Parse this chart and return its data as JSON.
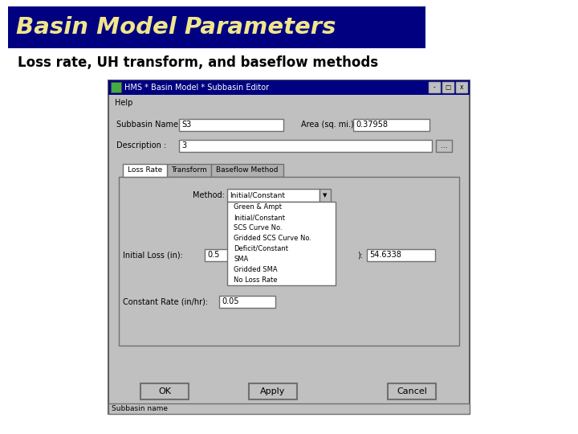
{
  "title": "Basin Model Parameters",
  "title_bg_color": "#000080",
  "title_text_color": "#F0E68C",
  "subtitle": "Loss rate, UH transform, and baseflow methods",
  "subtitle_color": "#000000",
  "bg_color": "#ffffff",
  "dialog": {
    "title_bar": "HMS * Basin Model * Subbasin Editor",
    "title_bar_bg": "#000080",
    "title_bar_fg": "#ffffff",
    "bg_color": "#C0C0C0",
    "subbasin_name_label": "Subbasin Name :",
    "subbasin_name_value": "S3",
    "area_label": "Area (sq. mi.)",
    "area_value": "0.37958",
    "description_label": "Description :",
    "description_value": "3",
    "tabs": [
      "Loss Rate",
      "Transform",
      "Baseflow Method"
    ],
    "active_tab": 0,
    "method_label": "Method:",
    "method_value": "Initial/Constant",
    "dropdown_items": [
      "Green & Ampt",
      "Initial/Constant",
      "SCS Curve No.",
      "Gridded SCS Curve No.",
      "Deficit/Constant",
      "SMA",
      "Gridded SMA",
      "No Loss Rate"
    ],
    "initial_loss_label": "Initial Loss (in):",
    "initial_loss_value": "0.5",
    "right_label": "):",
    "right_value": "54.6338",
    "constant_rate_label": "Constant Rate (in/hr):",
    "constant_rate_value": "0.05",
    "buttons": [
      "OK",
      "Apply",
      "Cancel"
    ],
    "status_bar": "Subbasin name"
  }
}
